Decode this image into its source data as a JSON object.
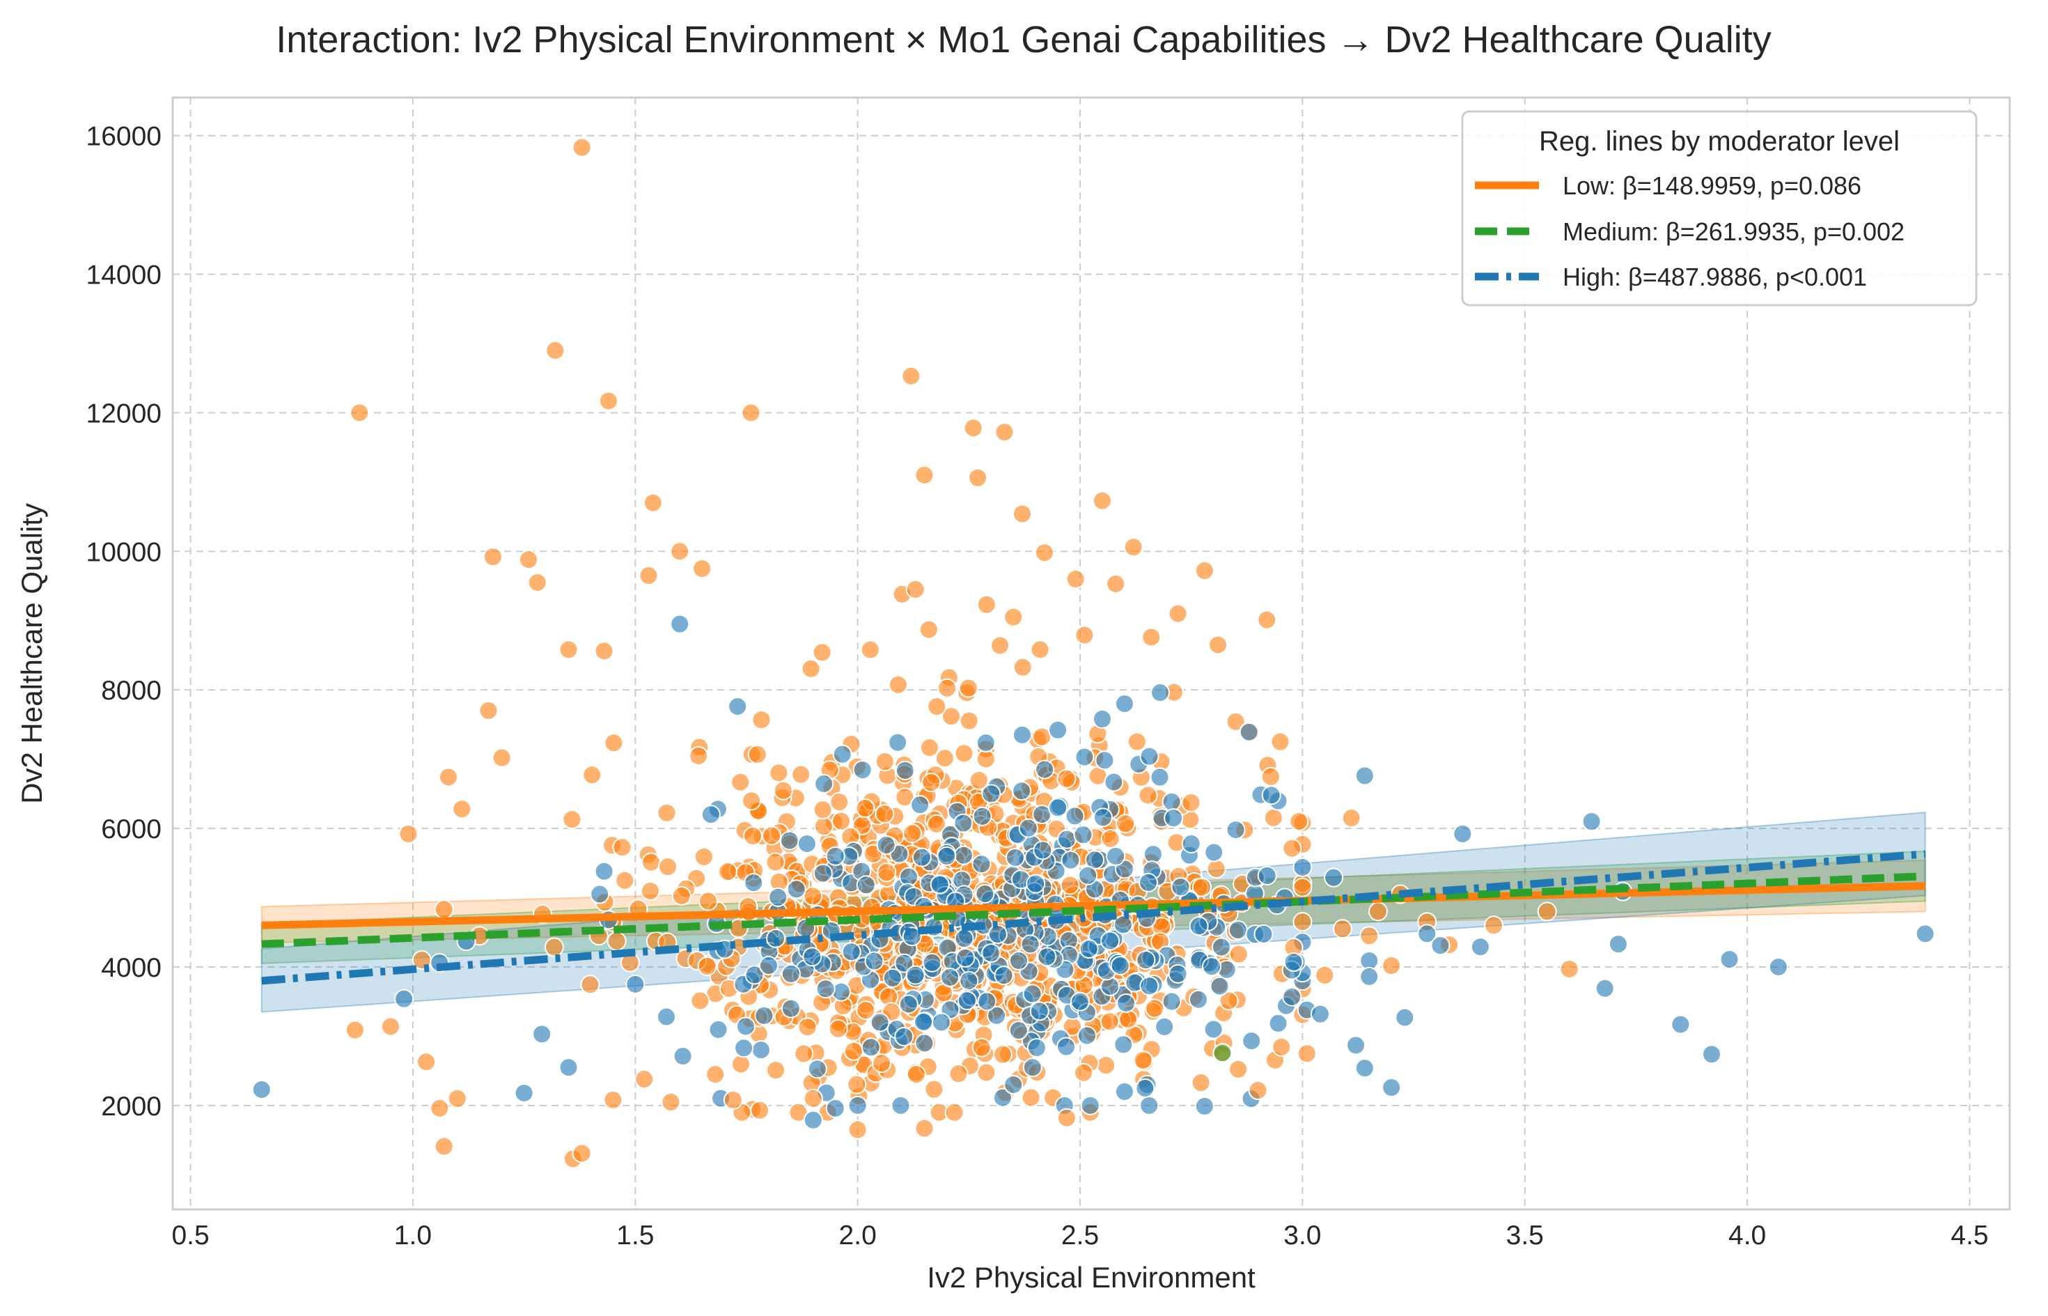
{
  "chart_data": {
    "type": "scatter",
    "title": "Interaction: Iv2 Physical Environment × Mo1 Genai Capabilities → Dv2 Healthcare Quality",
    "xlabel": "Iv2 Physical Environment",
    "ylabel": "Dv2 Healthcare Quality",
    "xlim": [
      0.46,
      4.59
    ],
    "ylim": [
      500,
      16550
    ],
    "x_ticks": [
      "0.5",
      "1.0",
      "1.5",
      "2.0",
      "2.5",
      "3.0",
      "3.5",
      "4.0",
      "4.5"
    ],
    "x_tick_values": [
      0.5,
      1.0,
      1.5,
      2.0,
      2.5,
      3.0,
      3.5,
      4.0,
      4.5
    ],
    "y_ticks": [
      "2000",
      "4000",
      "6000",
      "8000",
      "10000",
      "12000",
      "14000",
      "16000"
    ],
    "y_tick_values": [
      2000,
      4000,
      6000,
      8000,
      10000,
      12000,
      14000,
      16000
    ],
    "grid": true,
    "legend": {
      "title": "Reg. lines by moderator level",
      "placement": "top-right",
      "entries": [
        "Low: β=148.9959, p=0.086",
        "Medium: β=261.9935, p=0.002",
        "High: β=487.9886, p<0.001"
      ]
    },
    "colors": {
      "low": "#ff7f0e",
      "medium": "#2ca02c",
      "high": "#1f77b4"
    },
    "regression_lines": [
      {
        "level": "Low",
        "x": [
          0.66,
          4.4
        ],
        "y": [
          4600,
          5170
        ],
        "band_low": [
          4350,
          4800
        ],
        "band_high": [
          4870,
          5540
        ],
        "style": "solid"
      },
      {
        "level": "Medium",
        "x": [
          0.66,
          4.4
        ],
        "y": [
          4330,
          5310
        ],
        "band_low": [
          4050,
          4950
        ],
        "band_high": [
          4620,
          5670
        ],
        "style": "dashed"
      },
      {
        "level": "High",
        "x": [
          0.66,
          4.4
        ],
        "y": [
          3800,
          5630
        ],
        "band_low": [
          3350,
          5030
        ],
        "band_high": [
          4260,
          6230
        ],
        "style": "dashdot"
      }
    ],
    "series": [
      {
        "name": "Low",
        "points": [
          [
            0.88,
            12000
          ],
          [
            1.32,
            12900
          ],
          [
            1.38,
            15830
          ],
          [
            1.44,
            12170
          ],
          [
            1.76,
            12000
          ],
          [
            2.12,
            12530
          ],
          [
            2.26,
            11780
          ],
          [
            2.33,
            11720
          ],
          [
            2.15,
            11100
          ],
          [
            2.27,
            11060
          ],
          [
            2.55,
            10730
          ],
          [
            1.54,
            10700
          ],
          [
            2.37,
            10540
          ],
          [
            1.18,
            9920
          ],
          [
            1.26,
            9880
          ],
          [
            1.6,
            10000
          ],
          [
            2.42,
            9980
          ],
          [
            2.62,
            10060
          ],
          [
            1.28,
            9550
          ],
          [
            1.53,
            9650
          ],
          [
            1.65,
            9750
          ],
          [
            2.49,
            9600
          ],
          [
            2.58,
            9530
          ],
          [
            2.78,
            9720
          ],
          [
            2.1,
            9380
          ],
          [
            2.13,
            9450
          ],
          [
            2.29,
            9230
          ],
          [
            2.72,
            9100
          ],
          [
            2.92,
            9010
          ],
          [
            1.35,
            8580
          ],
          [
            1.43,
            8560
          ],
          [
            1.92,
            8540
          ],
          [
            2.32,
            8640
          ],
          [
            2.41,
            8580
          ],
          [
            2.81,
            8650
          ],
          [
            2.16,
            8870
          ],
          [
            2.35,
            9050
          ],
          [
            2.51,
            8790
          ],
          [
            2.66,
            8760
          ],
          [
            1.08,
            6740
          ],
          [
            1.11,
            6280
          ],
          [
            1.2,
            7020
          ],
          [
            1.17,
            7700
          ],
          [
            0.99,
            5920
          ],
          [
            1.07,
            4830
          ],
          [
            1.15,
            4450
          ],
          [
            1.02,
            4100
          ],
          [
            0.87,
            3090
          ],
          [
            0.95,
            3140
          ],
          [
            1.03,
            2630
          ],
          [
            1.06,
            1960
          ],
          [
            1.1,
            2100
          ],
          [
            1.07,
            1410
          ],
          [
            1.36,
            1230
          ],
          [
            1.38,
            1310
          ],
          [
            1.45,
            2080
          ],
          [
            1.52,
            2380
          ],
          [
            1.58,
            2050
          ],
          [
            1.68,
            2450
          ],
          [
            1.72,
            2080
          ],
          [
            1.78,
            1930
          ],
          [
            1.9,
            2100
          ],
          [
            2.0,
            1650
          ],
          [
            2.15,
            1670
          ],
          [
            2.47,
            1820
          ],
          [
            2.82,
            2740
          ],
          [
            2.9,
            2220
          ],
          [
            3.01,
            2750
          ],
          [
            2.85,
            7540
          ],
          [
            2.88,
            7400
          ],
          [
            2.95,
            7250
          ],
          [
            3.11,
            6150
          ],
          [
            2.98,
            4280
          ],
          [
            3.05,
            3880
          ],
          [
            3.09,
            4550
          ],
          [
            3.17,
            4800
          ],
          [
            3.22,
            5050
          ],
          [
            3.33,
            4320
          ],
          [
            3.43,
            4600
          ],
          [
            3.55,
            4800
          ],
          [
            3.6,
            3970
          ],
          [
            3.15,
            4450
          ],
          [
            3.2,
            4020
          ],
          [
            3.28,
            4650
          ]
        ]
      },
      {
        "name": "High",
        "points": [
          [
            0.66,
            2230
          ],
          [
            0.98,
            3540
          ],
          [
            1.06,
            4060
          ],
          [
            1.12,
            4370
          ],
          [
            1.25,
            2180
          ],
          [
            1.29,
            3030
          ],
          [
            1.35,
            2550
          ],
          [
            1.42,
            5050
          ],
          [
            1.43,
            5380
          ],
          [
            1.44,
            4680
          ],
          [
            1.5,
            3750
          ],
          [
            1.57,
            3280
          ],
          [
            1.6,
            8950
          ],
          [
            1.73,
            7760
          ],
          [
            1.67,
            6200
          ],
          [
            1.8,
            4020
          ],
          [
            1.85,
            3400
          ],
          [
            1.9,
            1790
          ],
          [
            1.95,
            1960
          ],
          [
            2.0,
            2000
          ],
          [
            2.05,
            3200
          ],
          [
            2.09,
            7240
          ],
          [
            2.14,
            6340
          ],
          [
            2.22,
            4950
          ],
          [
            2.3,
            6500
          ],
          [
            2.37,
            7350
          ],
          [
            2.45,
            7420
          ],
          [
            2.51,
            7030
          ],
          [
            2.55,
            7580
          ],
          [
            2.6,
            7800
          ],
          [
            2.68,
            7960
          ],
          [
            2.71,
            6150
          ],
          [
            2.75,
            5780
          ],
          [
            2.78,
            1990
          ],
          [
            2.85,
            5980
          ],
          [
            2.88,
            7390
          ],
          [
            2.93,
            6480
          ],
          [
            2.96,
            5000
          ],
          [
            2.98,
            4070
          ],
          [
            3.01,
            3380
          ],
          [
            3.04,
            3320
          ],
          [
            3.07,
            5290
          ],
          [
            3.12,
            2870
          ],
          [
            3.14,
            2540
          ],
          [
            3.14,
            6760
          ],
          [
            3.15,
            4090
          ],
          [
            3.15,
            3860
          ],
          [
            3.2,
            2260
          ],
          [
            3.23,
            3270
          ],
          [
            3.28,
            4480
          ],
          [
            3.31,
            4310
          ],
          [
            3.36,
            5920
          ],
          [
            3.4,
            4290
          ],
          [
            3.65,
            6100
          ],
          [
            3.68,
            3690
          ],
          [
            3.71,
            4330
          ],
          [
            3.72,
            5090
          ],
          [
            3.85,
            3170
          ],
          [
            3.92,
            2740
          ],
          [
            3.96,
            4110
          ],
          [
            4.07,
            4000
          ],
          [
            4.4,
            4480
          ],
          [
            2.35,
            2300
          ],
          [
            2.6,
            2200
          ],
          [
            2.72,
            3900
          ],
          [
            2.25,
            3800
          ],
          [
            2.4,
            5200
          ],
          [
            2.05,
            4400
          ],
          [
            1.95,
            5600
          ],
          [
            2.5,
            3500
          ],
          [
            2.65,
            4700
          ],
          [
            2.8,
            3100
          ],
          [
            2.15,
            2900
          ],
          [
            1.85,
            3900
          ],
          [
            2.45,
            6300
          ],
          [
            2.58,
            5600
          ],
          [
            2.3,
            4200
          ],
          [
            2.2,
            5600
          ]
        ]
      },
      {
        "name": "Medium",
        "points": [
          [
            2.82,
            2760
          ]
        ]
      }
    ]
  }
}
